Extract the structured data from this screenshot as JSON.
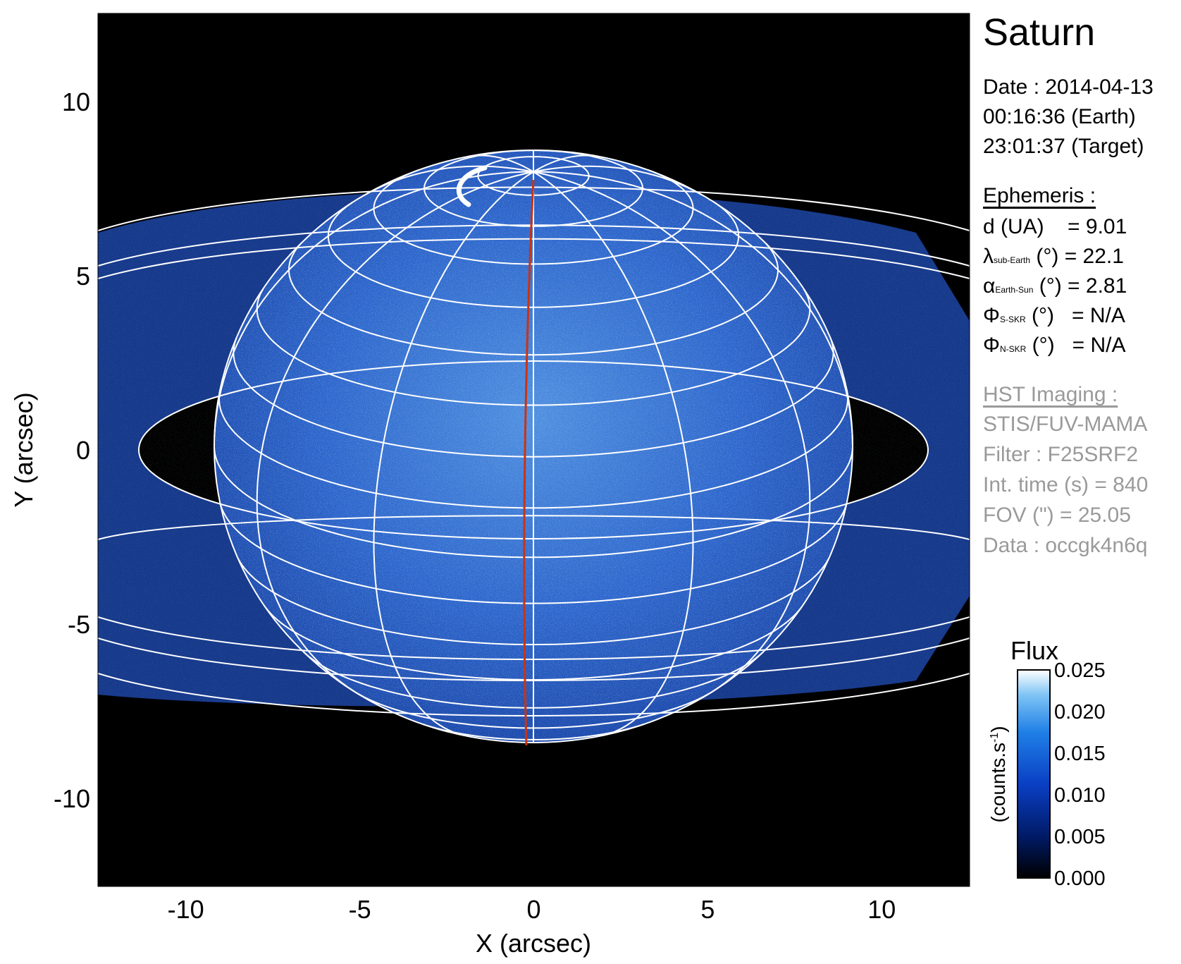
{
  "title": "Saturn",
  "date": {
    "line1": "Date : 2014-04-13",
    "line2": "00:16:36 (Earth)",
    "line3": "23:01:37 (Target)"
  },
  "ephemeris": {
    "header": "Ephemeris :",
    "d_label": "d (UA)",
    "d_value": "= 9.01",
    "lambda_symbol": "λ",
    "lambda_sub": "sub-Earth",
    "lambda_unit": "(°) = 22.1",
    "alpha_symbol": "α",
    "alpha_sub": "Earth-Sun",
    "alpha_unit": "(°) = 2.81",
    "phi_s_symbol": "Φ",
    "phi_s_sub": "S-SKR",
    "phi_s_unit": "(°)",
    "phi_s_value": "= N/A",
    "phi_n_symbol": "Φ",
    "phi_n_sub": "N-SKR",
    "phi_n_unit": "(°)",
    "phi_n_value": "= N/A"
  },
  "imaging": {
    "header": "HST Imaging :",
    "instrument": "STIS/FUV-MAMA",
    "filter": "Filter : F25SRF2",
    "int_time": "Int. time (s) = 840",
    "fov": "FOV (\") = 25.05",
    "data": "Data : occgk4n6q"
  },
  "axes": {
    "xlabel": "X (arcsec)",
    "ylabel": "Y (arcsec)",
    "xticks": [
      "-10",
      "-5",
      "0",
      "5",
      "10"
    ],
    "xtick_values": [
      -10,
      -5,
      0,
      5,
      10
    ],
    "yticks": [
      "10",
      "5",
      "0",
      "-5",
      "-10"
    ],
    "ytick_values": [
      10,
      5,
      0,
      -5,
      -10
    ],
    "xlim": [
      -12.525,
      12.525
    ],
    "ylim": [
      -12.525,
      12.525
    ]
  },
  "colorbar": {
    "title": "Flux",
    "unit_label": "(counts.s",
    "unit_sup": "-1",
    "unit_close": ")",
    "ticks": [
      "0.025",
      "0.020",
      "0.015",
      "0.010",
      "0.005",
      "0.000"
    ],
    "tick_values": [
      0.025,
      0.02,
      0.015,
      0.01,
      0.005,
      0.0
    ],
    "range": [
      0.0,
      0.025
    ],
    "colors": [
      "#000000",
      "#001a66",
      "#0a3fc4",
      "#1f7fe6",
      "#7fc4f5",
      "#ffffff"
    ]
  },
  "colors": {
    "background": "#000000",
    "grid": "#ffffff",
    "meridian": "#cc3311",
    "planet_blue": "#2a60c8",
    "ring_blue": "#163a8f"
  }
}
